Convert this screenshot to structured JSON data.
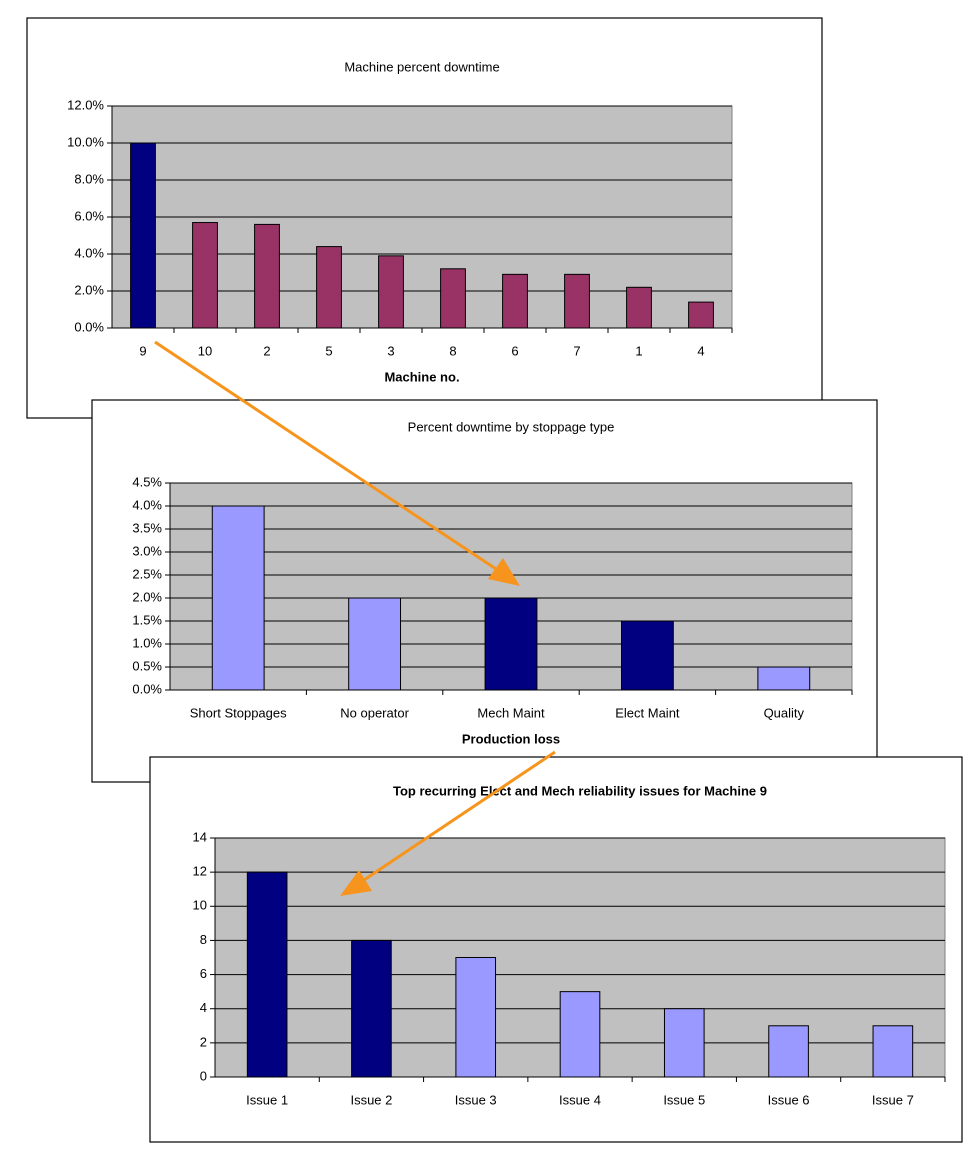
{
  "chart_data": [
    {
      "type": "bar",
      "title": "Machine percent downtime",
      "x_label": "Machine no.",
      "categories": [
        "9",
        "10",
        "2",
        "5",
        "3",
        "8",
        "6",
        "7",
        "1",
        "4"
      ],
      "values": [
        10.0,
        5.7,
        5.6,
        4.4,
        3.9,
        3.2,
        2.9,
        2.9,
        2.2,
        1.4
      ],
      "colors": [
        "#000080",
        "#993366",
        "#993366",
        "#993366",
        "#993366",
        "#993366",
        "#993366",
        "#993366",
        "#993366",
        "#993366"
      ],
      "ylim": [
        0,
        12
      ],
      "yticks": [
        {
          "value": 0,
          "label": "0.0%"
        },
        {
          "value": 2,
          "label": "2.0%"
        },
        {
          "value": 4,
          "label": "4.0%"
        },
        {
          "value": 6,
          "label": "6.0%"
        },
        {
          "value": 8,
          "label": "8.0%"
        },
        {
          "value": 10,
          "label": "10.0%"
        },
        {
          "value": 12,
          "label": "12.0%"
        }
      ],
      "grid": true
    },
    {
      "type": "bar",
      "title": "Percent downtime by stoppage type",
      "x_label": "Production loss",
      "categories": [
        "Short Stoppages",
        "No operator",
        "Mech Maint",
        "Elect Maint",
        "Quality"
      ],
      "values": [
        4.0,
        2.0,
        2.0,
        1.5,
        0.5
      ],
      "colors": [
        "#9999ff",
        "#9999ff",
        "#000080",
        "#000080",
        "#9999ff"
      ],
      "ylim": [
        0,
        4.5
      ],
      "yticks": [
        {
          "value": 0,
          "label": "0.0%"
        },
        {
          "value": 0.5,
          "label": "0.5%"
        },
        {
          "value": 1,
          "label": "1.0%"
        },
        {
          "value": 1.5,
          "label": "1.5%"
        },
        {
          "value": 2,
          "label": "2.0%"
        },
        {
          "value": 2.5,
          "label": "2.5%"
        },
        {
          "value": 3,
          "label": "3.0%"
        },
        {
          "value": 3.5,
          "label": "3.5%"
        },
        {
          "value": 4,
          "label": "4.0%"
        },
        {
          "value": 4.5,
          "label": "4.5%"
        }
      ],
      "grid": true
    },
    {
      "type": "bar",
      "title": "Top recurring Elect and Mech reliability  issues for Machine 9",
      "categories": [
        "Issue 1",
        "Issue 2",
        "Issue 3",
        "Issue 4",
        "Issue 5",
        "Issue 6",
        "Issue 7"
      ],
      "values": [
        12,
        8,
        7,
        5,
        4,
        3,
        3
      ],
      "colors": [
        "#000080",
        "#000080",
        "#9999ff",
        "#9999ff",
        "#9999ff",
        "#9999ff",
        "#9999ff"
      ],
      "ylim": [
        0,
        14
      ],
      "yticks": [
        0,
        2,
        4,
        6,
        8,
        10,
        12,
        14
      ],
      "grid": true
    }
  ]
}
